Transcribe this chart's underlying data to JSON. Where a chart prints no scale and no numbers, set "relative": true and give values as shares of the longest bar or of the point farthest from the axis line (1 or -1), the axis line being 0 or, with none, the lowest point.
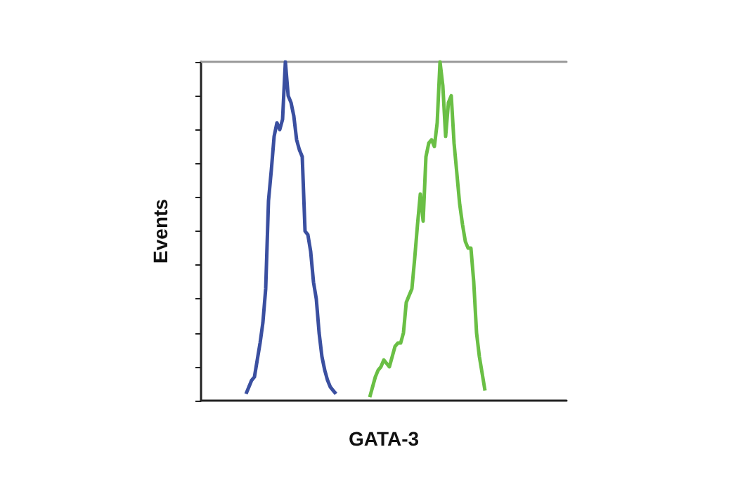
{
  "chart_data": {
    "type": "line",
    "xlabel": "GATA-3",
    "ylabel": "Events",
    "relative": true,
    "categories": [
      null,
      null,
      null,
      null,
      null,
      null,
      null,
      null,
      null,
      null,
      null,
      null,
      null,
      null,
      null,
      null,
      null,
      null,
      null,
      null,
      null,
      null,
      null,
      null,
      null,
      null,
      null,
      null,
      null,
      null,
      null,
      null,
      null,
      null,
      null,
      null,
      null,
      null,
      null,
      null,
      null,
      null,
      null,
      null,
      null,
      null,
      null,
      null,
      null,
      null,
      null,
      null,
      null,
      null,
      null,
      null,
      null,
      null,
      null,
      null,
      null,
      null,
      null,
      null,
      null,
      null,
      null,
      null,
      null,
      null,
      null,
      null,
      null,
      null,
      null,
      null,
      null,
      null,
      null,
      null,
      null,
      null,
      null,
      null,
      null,
      null,
      null,
      null,
      null,
      null,
      null,
      null,
      null,
      null,
      null,
      null,
      null,
      null,
      null,
      null,
      null,
      null,
      null,
      null,
      null,
      null,
      null,
      null,
      null,
      null,
      null,
      null,
      null,
      null,
      null,
      null,
      null,
      null,
      null,
      null,
      null,
      null,
      null,
      null,
      null,
      null,
      null,
      null,
      null,
      null,
      null
    ],
    "series": [
      {
        "color": "#3a4fa0",
        "values": [
          null,
          null,
          null,
          null,
          null,
          null,
          null,
          null,
          null,
          null,
          null,
          null,
          null,
          null,
          null,
          null,
          0.02,
          0.04,
          0.06,
          0.07,
          0.12,
          0.17,
          0.23,
          0.33,
          0.59,
          0.68,
          0.78,
          0.82,
          0.8,
          0.83,
          1.0,
          0.9,
          0.88,
          0.84,
          0.77,
          0.74,
          0.72,
          0.5,
          0.49,
          0.44,
          0.35,
          0.3,
          0.2,
          0.13,
          0.09,
          0.06,
          0.04,
          0.03,
          0.02,
          null,
          null,
          null,
          null,
          null,
          null,
          null,
          null,
          null,
          null,
          null,
          null,
          null,
          null,
          null,
          null,
          null,
          null,
          null,
          null,
          null,
          null,
          null,
          null,
          null,
          null,
          null,
          null,
          null,
          null,
          null,
          null,
          null,
          null,
          null,
          null,
          null,
          null,
          null,
          null,
          null,
          null,
          null,
          null,
          null,
          null,
          null,
          null,
          null,
          null,
          null,
          null,
          null,
          null,
          null,
          null,
          null,
          null,
          null,
          null,
          null,
          null,
          null,
          null,
          null,
          null,
          null,
          null,
          null,
          null,
          null,
          null,
          null,
          null,
          null,
          null,
          null,
          null,
          null,
          null,
          null,
          null
        ]
      },
      {
        "color": "#6abf45",
        "values": [
          null,
          null,
          null,
          null,
          null,
          null,
          null,
          null,
          null,
          null,
          null,
          null,
          null,
          null,
          null,
          null,
          null,
          null,
          null,
          null,
          null,
          null,
          null,
          null,
          null,
          null,
          null,
          null,
          null,
          null,
          null,
          null,
          null,
          null,
          null,
          null,
          null,
          null,
          null,
          null,
          null,
          null,
          null,
          null,
          null,
          null,
          null,
          null,
          null,
          null,
          null,
          null,
          null,
          null,
          null,
          null,
          null,
          null,
          null,
          null,
          0.01,
          0.04,
          0.07,
          0.09,
          0.1,
          0.12,
          0.11,
          0.1,
          0.13,
          0.16,
          0.17,
          0.17,
          0.2,
          0.29,
          0.31,
          0.33,
          0.42,
          0.52,
          0.61,
          0.53,
          0.72,
          0.76,
          0.77,
          0.75,
          0.82,
          1.0,
          0.93,
          0.78,
          0.88,
          0.9,
          0.76,
          0.67,
          0.58,
          0.52,
          0.47,
          0.45,
          0.45,
          0.35,
          0.2,
          0.13,
          0.08,
          0.03,
          null,
          null,
          null,
          null,
          null,
          null,
          null,
          null,
          null,
          null,
          null,
          null,
          null,
          null,
          null,
          null,
          null,
          null,
          null,
          null,
          null,
          null,
          null,
          null,
          null,
          null,
          null,
          null,
          null
        ]
      }
    ]
  }
}
